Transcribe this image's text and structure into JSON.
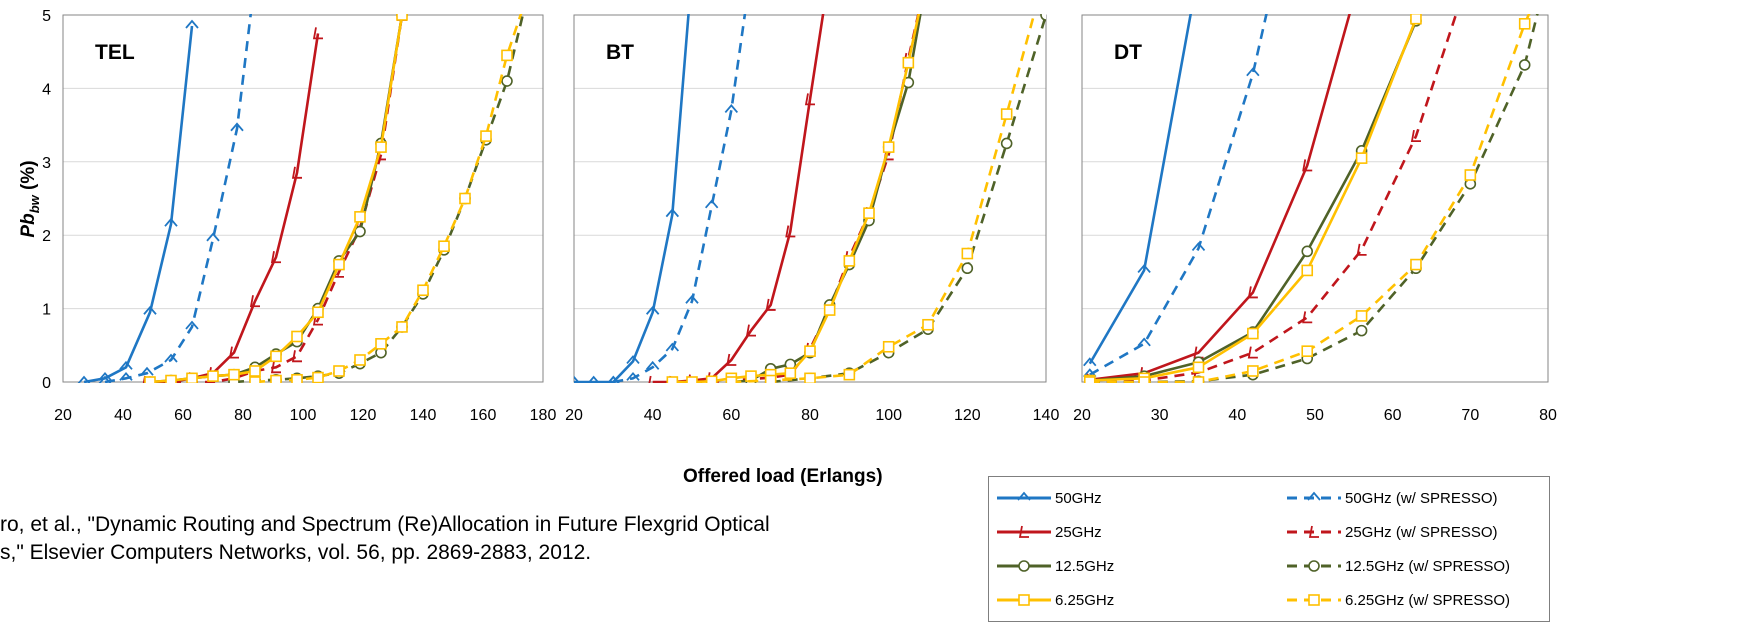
{
  "chart_data": {
    "type": "line",
    "xlabel": "Offered load (Erlangs)",
    "ylabel": "Pb_bw (%)",
    "ylabel_main": "Pb",
    "ylabel_sub": "bw",
    "ylabel_unit": " (%)",
    "ylim": [
      0,
      5
    ],
    "yticks": [
      0,
      1,
      2,
      3,
      4,
      5
    ],
    "grid": "horizontal",
    "legend_position": "bottom-right",
    "series_styles": [
      {
        "name": "50GHz",
        "color": "#1f77c4",
        "dash": false,
        "marker": "diamond-open"
      },
      {
        "name": "50GHz (w/ SPRESSO)",
        "color": "#1f77c4",
        "dash": true,
        "marker": "diamond-open"
      },
      {
        "name": "25GHz",
        "color": "#c0161c",
        "dash": false,
        "marker": "triangle-open"
      },
      {
        "name": "25GHz (w/ SPRESSO)",
        "color": "#c0161c",
        "dash": true,
        "marker": "triangle-open"
      },
      {
        "name": "12.5GHz",
        "color": "#4f6228",
        "dash": false,
        "marker": "circle-open"
      },
      {
        "name": "12.5GHz (w/ SPRESSO)",
        "color": "#4f6228",
        "dash": true,
        "marker": "circle-open"
      },
      {
        "name": "6.25GHz",
        "color": "#ffc000",
        "dash": false,
        "marker": "square-open"
      },
      {
        "name": "6.25GHz (w/ SPRESSO)",
        "color": "#ffc000",
        "dash": true,
        "marker": "square-open"
      }
    ],
    "panels": [
      {
        "title": "TEL",
        "xlim": [
          20,
          180
        ],
        "xticks": [
          20,
          40,
          60,
          80,
          100,
          120,
          140,
          160,
          180
        ],
        "series": [
          {
            "name": "50GHz",
            "x": [
              27,
              34,
              41,
              49,
              56,
              63
            ],
            "y": [
              0,
              0.05,
              0.2,
              0.95,
              2.15,
              4.85
            ]
          },
          {
            "name": "50GHz (w/ SPRESSO)",
            "x": [
              34,
              41,
              48,
              56,
              63,
              70,
              78,
              84
            ],
            "y": [
              0,
              0.05,
              0.12,
              0.3,
              0.75,
              1.95,
              3.45,
              5.5
            ]
          },
          {
            "name": "25GHz",
            "x": [
              48,
              56,
              63,
              70,
              77,
              84,
              91,
              98,
              105
            ],
            "y": [
              0,
              0,
              0.05,
              0.12,
              0.4,
              1.1,
              1.7,
              2.85,
              4.75
            ]
          },
          {
            "name": "25GHz (w/ SPRESSO)",
            "x": [
              56,
              63,
              70,
              77,
              84,
              91,
              98,
              105,
              112,
              119,
              126,
              133
            ],
            "y": [
              0,
              0,
              0,
              0.05,
              0.15,
              0.2,
              0.35,
              0.85,
              1.5,
              2.1,
              3.1,
              5.0
            ]
          },
          {
            "name": "12.5GHz",
            "x": [
              49,
              56,
              63,
              70,
              77,
              84,
              91,
              98,
              105,
              112,
              119,
              126,
              133
            ],
            "y": [
              0,
              0.02,
              0.05,
              0.08,
              0.1,
              0.2,
              0.38,
              0.55,
              1.0,
              1.65,
              2.05,
              3.25,
              5.0
            ]
          },
          {
            "name": "12.5GHz (w/ SPRESSO)",
            "x": [
              77,
              84,
              91,
              98,
              105,
              112,
              119,
              126,
              133,
              140,
              147,
              154,
              161,
              168,
              175
            ],
            "y": [
              0,
              0.02,
              0.03,
              0.05,
              0.08,
              0.12,
              0.25,
              0.4,
              0.75,
              1.2,
              1.8,
              2.5,
              3.3,
              4.1,
              5.3
            ]
          },
          {
            "name": "6.25GHz",
            "x": [
              49,
              56,
              63,
              70,
              77,
              84,
              91,
              98,
              105,
              112,
              119,
              126,
              133
            ],
            "y": [
              0,
              0.02,
              0.05,
              0.08,
              0.1,
              0.15,
              0.35,
              0.62,
              0.95,
              1.6,
              2.25,
              3.2,
              5.0
            ]
          },
          {
            "name": "6.25GHz (w/ SPRESSO)",
            "x": [
              84,
              91,
              98,
              105,
              112,
              119,
              126,
              133,
              140,
              147,
              154,
              161,
              168,
              175
            ],
            "y": [
              0,
              0.02,
              0.03,
              0.06,
              0.15,
              0.3,
              0.52,
              0.75,
              1.25,
              1.85,
              2.5,
              3.35,
              4.45,
              5.3
            ]
          }
        ]
      },
      {
        "title": "BT",
        "xlim": [
          20,
          140
        ],
        "xticks": [
          20,
          40,
          60,
          80,
          100,
          120,
          140
        ],
        "series": [
          {
            "name": "50GHz",
            "x": [
              20,
              25,
              30,
              35,
              40,
              45,
              50
            ],
            "y": [
              0,
              0,
              0,
              0.28,
              0.95,
              2.28,
              5.6
            ]
          },
          {
            "name": "50GHz (w/ SPRESSO)",
            "x": [
              30,
              35,
              40,
              45,
              50,
              55,
              60,
              65
            ],
            "y": [
              0,
              0.05,
              0.2,
              0.45,
              1.1,
              2.4,
              3.7,
              5.6
            ]
          },
          {
            "name": "25GHz",
            "x": [
              40,
              45,
              50,
              55,
              60,
              65,
              70,
              75,
              80,
              85
            ],
            "y": [
              0,
              0,
              0.02,
              0.05,
              0.3,
              0.7,
              1.05,
              2.05,
              3.85,
              5.6
            ]
          },
          {
            "name": "25GHz (w/ SPRESSO)",
            "x": [
              50,
              55,
              60,
              65,
              70,
              75,
              80,
              85,
              90,
              95,
              100,
              105,
              110
            ],
            "y": [
              0,
              0,
              0.02,
              0.04,
              0.06,
              0.1,
              0.45,
              1.0,
              1.7,
              2.3,
              3.1,
              4.4,
              5.6
            ]
          },
          {
            "name": "12.5GHz",
            "x": [
              60,
              65,
              70,
              75,
              80,
              85,
              90,
              95,
              100,
              105,
              110
            ],
            "y": [
              0,
              0.02,
              0.18,
              0.24,
              0.4,
              1.05,
              1.6,
              2.2,
              3.2,
              4.08,
              5.6
            ]
          },
          {
            "name": "12.5GHz (w/ SPRESSO)",
            "x": [
              70,
              80,
              90,
              100,
              110,
              120,
              130,
              140
            ],
            "y": [
              0,
              0.05,
              0.12,
              0.4,
              0.72,
              1.55,
              3.25,
              5.0
            ]
          },
          {
            "name": "6.25GHz",
            "x": [
              45,
              50,
              55,
              60,
              65,
              70,
              75,
              80,
              85,
              90,
              95,
              100,
              105,
              110
            ],
            "y": [
              0,
              0,
              0.01,
              0.05,
              0.08,
              0.1,
              0.12,
              0.42,
              0.98,
              1.65,
              2.3,
              3.2,
              4.35,
              5.6
            ]
          },
          {
            "name": "6.25GHz (w/ SPRESSO)",
            "x": [
              60,
              70,
              80,
              90,
              100,
              110,
              120,
              130,
              140
            ],
            "y": [
              0,
              0.02,
              0.05,
              0.1,
              0.48,
              0.78,
              1.75,
              3.65,
              5.6
            ]
          }
        ]
      },
      {
        "title": "DT",
        "xlim": [
          20,
          80
        ],
        "xticks": [
          20,
          30,
          40,
          50,
          60,
          70,
          80
        ],
        "series": [
          {
            "name": "50GHz",
            "x": [
              21,
              28,
              35
            ],
            "y": [
              0.25,
              1.52,
              5.6
            ]
          },
          {
            "name": "50GHz (w/ SPRESSO)",
            "x": [
              21,
              28,
              35,
              42,
              45
            ],
            "y": [
              0.1,
              0.52,
              1.82,
              4.2,
              5.6
            ]
          },
          {
            "name": "25GHz",
            "x": [
              21,
              28,
              35,
              42,
              49,
              56
            ],
            "y": [
              0.03,
              0.12,
              0.4,
              1.22,
              2.95,
              5.6
            ]
          },
          {
            "name": "25GHz (w/ SPRESSO)",
            "x": [
              21,
              28,
              35,
              42,
              49,
              56,
              63,
              70
            ],
            "y": [
              0,
              0.02,
              0.13,
              0.4,
              0.88,
              1.8,
              3.35,
              5.6
            ]
          },
          {
            "name": "12.5GHz",
            "x": [
              21,
              28,
              35,
              42,
              49,
              56,
              63,
              65
            ],
            "y": [
              0.02,
              0.08,
              0.27,
              0.68,
              1.78,
              3.15,
              4.92,
              5.6
            ]
          },
          {
            "name": "12.5GHz (w/ SPRESSO)",
            "x": [
              21,
              28,
              35,
              42,
              49,
              56,
              63,
              70,
              77,
              80
            ],
            "y": [
              0,
              0,
              0.01,
              0.1,
              0.32,
              0.7,
              1.55,
              2.7,
              4.32,
              5.6
            ]
          },
          {
            "name": "6.25GHz",
            "x": [
              21,
              28,
              35,
              42,
              49,
              56,
              63,
              65
            ],
            "y": [
              0.02,
              0.05,
              0.2,
              0.66,
              1.52,
              3.05,
              4.95,
              5.6
            ]
          },
          {
            "name": "6.25GHz (w/ SPRESSO)",
            "x": [
              21,
              28,
              35,
              42,
              49,
              56,
              63,
              70,
              77,
              80
            ],
            "y": [
              0,
              0,
              0,
              0.15,
              0.42,
              0.9,
              1.6,
              2.82,
              4.88,
              5.6
            ]
          }
        ]
      }
    ]
  },
  "legend": {
    "items": [
      "50GHz",
      "50GHz (w/ SPRESSO)",
      "25GHz",
      "25GHz (w/ SPRESSO)",
      "12.5GHz",
      "12.5GHz (w/ SPRESSO)",
      "6.25GHz",
      "6.25GHz (w/ SPRESSO)"
    ]
  },
  "reference": {
    "line1": "ro, et al., \"Dynamic Routing and Spectrum (Re)Allocation in Future Flexgrid Optical",
    "line2": "s,\" Elsevier Computers Networks, vol. 56, pp. 2869-2883, 2012."
  }
}
